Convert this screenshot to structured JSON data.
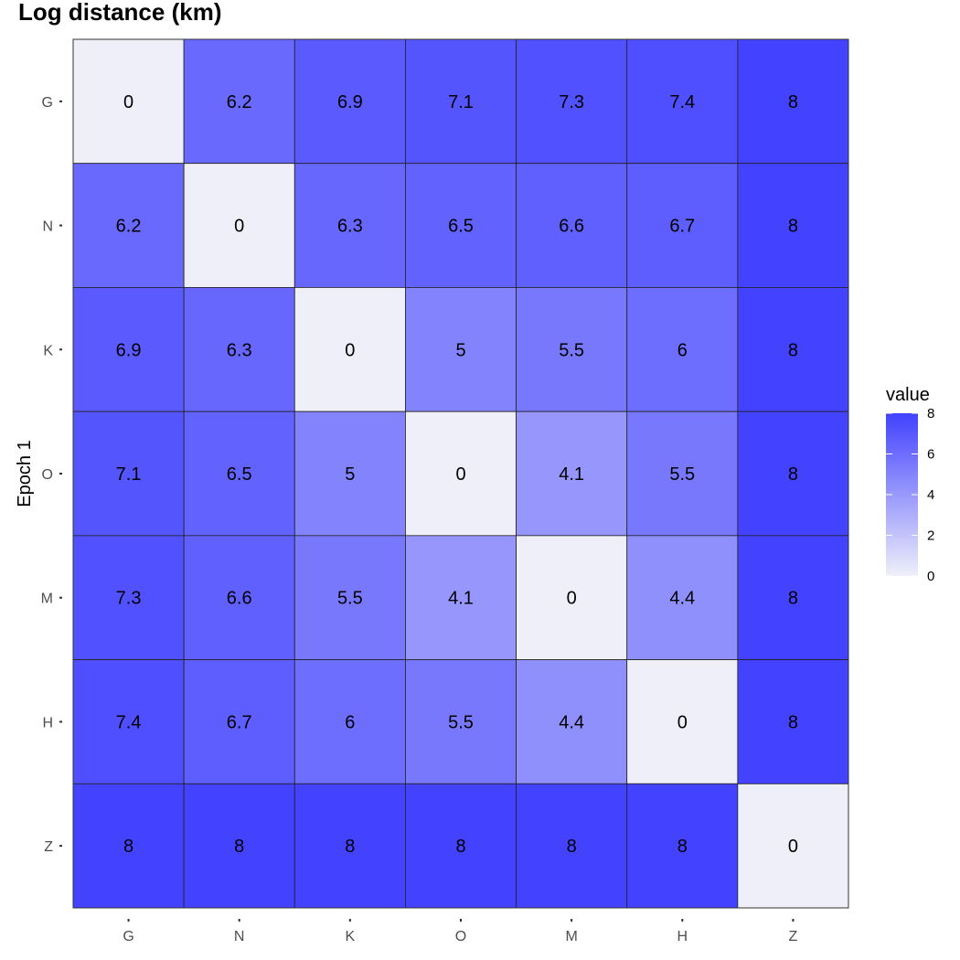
{
  "chart_data": {
    "type": "heatmap",
    "title": "Log distance (km)",
    "xlabel": "",
    "ylabel": "Epoch 1",
    "x_categories": [
      "G",
      "N",
      "K",
      "O",
      "M",
      "H",
      "Z"
    ],
    "y_categories": [
      "G",
      "N",
      "K",
      "O",
      "M",
      "H",
      "Z"
    ],
    "values": [
      [
        0,
        6.2,
        6.9,
        7.1,
        7.3,
        7.4,
        8
      ],
      [
        6.2,
        0,
        6.3,
        6.5,
        6.6,
        6.7,
        8
      ],
      [
        6.9,
        6.3,
        0,
        5,
        5.5,
        6,
        8
      ],
      [
        7.1,
        6.5,
        5,
        0,
        4.1,
        5.5,
        8
      ],
      [
        7.3,
        6.6,
        5.5,
        4.1,
        0,
        4.4,
        8
      ],
      [
        7.4,
        6.7,
        6,
        5.5,
        4.4,
        0,
        8
      ],
      [
        8,
        8,
        8,
        8,
        8,
        8,
        0
      ]
    ],
    "labels": [
      [
        "0",
        "6.2",
        "6.9",
        "7.1",
        "7.3",
        "7.4",
        "8"
      ],
      [
        "6.2",
        "0",
        "6.3",
        "6.5",
        "6.6",
        "6.7",
        "8"
      ],
      [
        "6.9",
        "6.3",
        "0",
        "5",
        "5.5",
        "6",
        "8"
      ],
      [
        "7.1",
        "6.5",
        "5",
        "0",
        "4.1",
        "5.5",
        "8"
      ],
      [
        "7.3",
        "6.6",
        "5.5",
        "4.1",
        "0",
        "4.4",
        "8"
      ],
      [
        "7.4",
        "6.7",
        "6",
        "5.5",
        "4.4",
        "0",
        "8"
      ],
      [
        "8",
        "8",
        "8",
        "8",
        "8",
        "8",
        "0"
      ]
    ],
    "color_scale": {
      "low": "#efeffa",
      "high": "#4242ff",
      "min": 0,
      "max": 8
    },
    "legend": {
      "title": "value",
      "ticks": [
        0,
        2,
        4,
        6,
        8
      ],
      "tick_labels": [
        "0",
        "2",
        "4",
        "6",
        "8"
      ],
      "placement": "right"
    }
  }
}
